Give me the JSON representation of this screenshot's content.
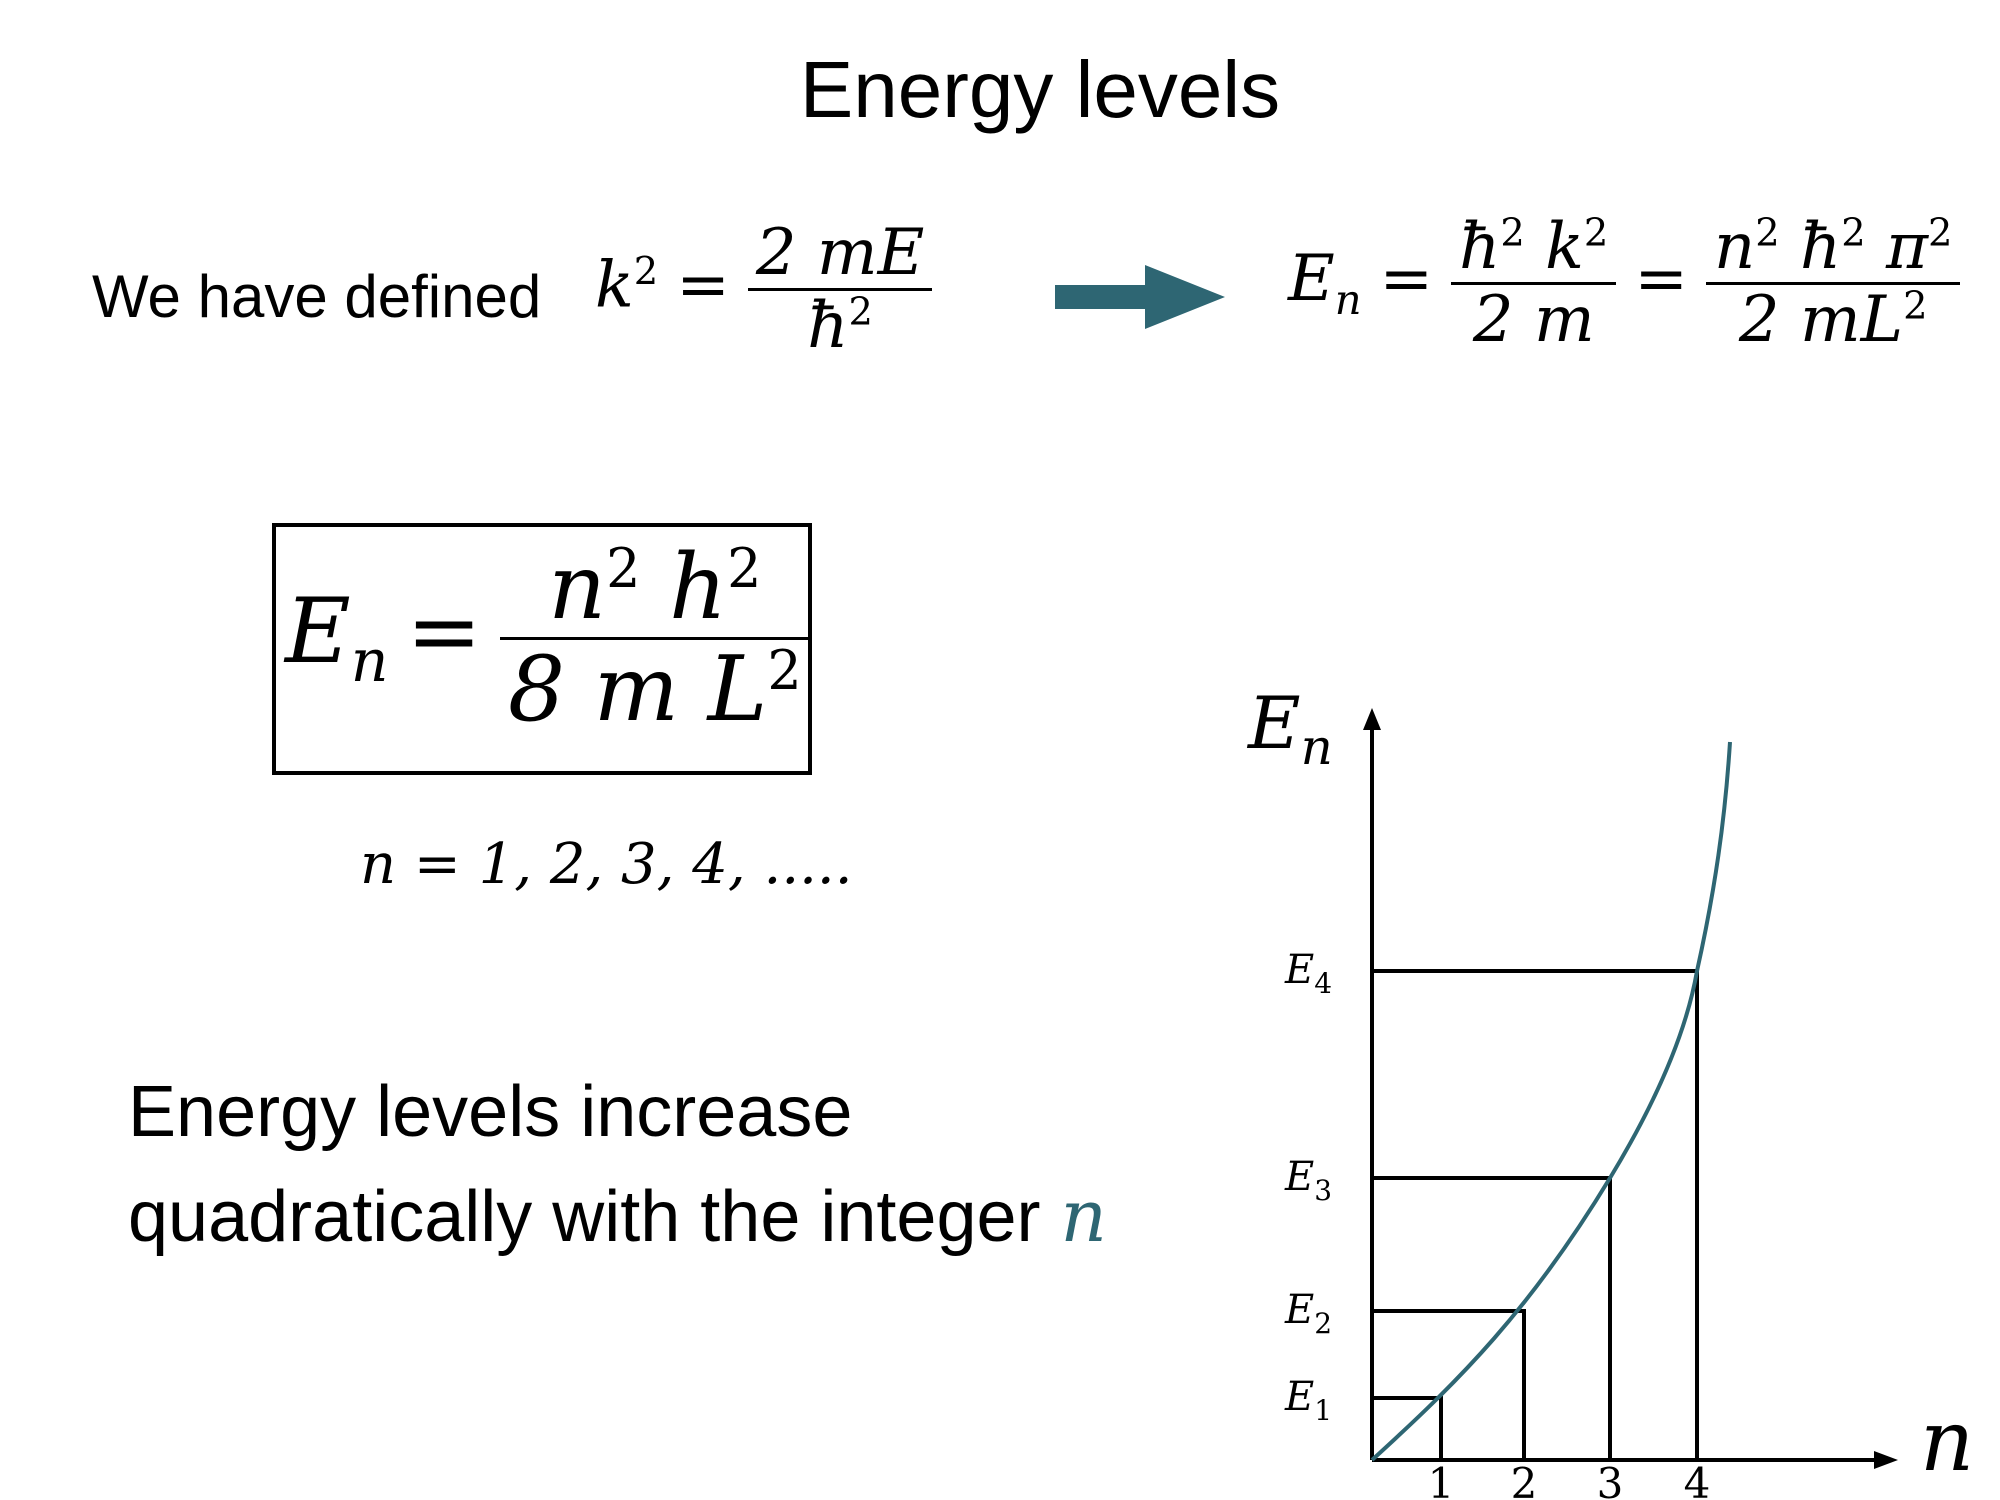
{
  "title": "Energy levels",
  "intro_text": "We have defined",
  "definition": {
    "lhs": "k",
    "lhs_exp": "2",
    "numerator": "2 mE",
    "denominator": "ħ",
    "denominator_exp": "2"
  },
  "arrow_color": "#2e6673",
  "energy_expression": {
    "lhs": "E",
    "lhs_sub": "n",
    "frac1_num_a": "ħ",
    "frac1_num_b": "k",
    "frac1_den": "2 m",
    "frac2_num_a": "n",
    "frac2_num_b": "ħ",
    "frac2_num_c": "π",
    "frac2_den_a": "2 mL",
    "exp": "2"
  },
  "boxed_formula": {
    "lhs": "E",
    "lhs_sub": "n",
    "num_a": "n",
    "num_b": "h",
    "den_a": "8 m L",
    "exp": "2"
  },
  "n_values": "n = 1, 2, 3, 4, .....",
  "caption": {
    "line1": "Energy levels increase",
    "line2": "quadratically with the integer",
    "variable": "n"
  },
  "graph": {
    "y_axis_label": "E",
    "y_axis_sub": "n",
    "x_axis_label": "n",
    "curve_color": "#2e6673",
    "levels": [
      {
        "label": "E",
        "sub": "1",
        "n": "1"
      },
      {
        "label": "E",
        "sub": "2",
        "n": "2"
      },
      {
        "label": "E",
        "sub": "3",
        "n": "3"
      },
      {
        "label": "E",
        "sub": "4",
        "n": "4"
      }
    ]
  }
}
